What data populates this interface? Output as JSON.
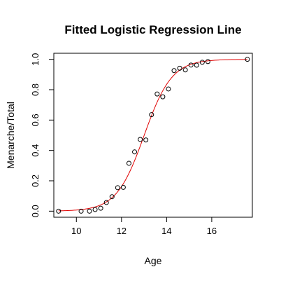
{
  "chart_data": {
    "type": "scatter",
    "title": "Fitted Logistic Regression Line",
    "xlabel": "Age",
    "ylabel": "Menarche/Total",
    "xlim": [
      9.0,
      17.8
    ],
    "ylim": [
      -0.04,
      1.04
    ],
    "x_ticks": [
      10,
      12,
      14,
      16
    ],
    "y_ticks": [
      0.0,
      0.2,
      0.4,
      0.6,
      0.8,
      1.0
    ],
    "x_tick_labels": [
      "10",
      "12",
      "14",
      "16"
    ],
    "y_tick_labels": [
      "0.0",
      "0.2",
      "0.4",
      "0.6",
      "0.8",
      "1.0"
    ],
    "grid": false,
    "series": [
      {
        "kind": "points",
        "marker": "open-circle",
        "color": "#000000",
        "points": [
          {
            "x": 9.21,
            "y": 0.0
          },
          {
            "x": 10.21,
            "y": 0.0
          },
          {
            "x": 10.58,
            "y": 0.0
          },
          {
            "x": 10.83,
            "y": 0.0108
          },
          {
            "x": 11.08,
            "y": 0.0193
          },
          {
            "x": 11.33,
            "y": 0.0571
          },
          {
            "x": 11.58,
            "y": 0.0952
          },
          {
            "x": 11.83,
            "y": 0.1547
          },
          {
            "x": 12.08,
            "y": 0.1566
          },
          {
            "x": 12.33,
            "y": 0.3151
          },
          {
            "x": 12.58,
            "y": 0.3901
          },
          {
            "x": 12.83,
            "y": 0.4725
          },
          {
            "x": 13.08,
            "y": 0.4688
          },
          {
            "x": 13.33,
            "y": 0.6354
          },
          {
            "x": 13.58,
            "y": 0.7719
          },
          {
            "x": 13.83,
            "y": 0.7534
          },
          {
            "x": 14.08,
            "y": 0.8049
          },
          {
            "x": 14.33,
            "y": 0.9259
          },
          {
            "x": 14.58,
            "y": 0.9412
          },
          {
            "x": 14.83,
            "y": 0.9302
          },
          {
            "x": 15.08,
            "y": 0.9623
          },
          {
            "x": 15.33,
            "y": 0.9615
          },
          {
            "x": 15.58,
            "y": 0.9804
          },
          {
            "x": 15.83,
            "y": 0.985
          },
          {
            "x": 17.58,
            "y": 1.0
          }
        ]
      },
      {
        "kind": "line",
        "color": "#e00000",
        "fit": "logistic",
        "intercept": -21.226,
        "slope": 1.632,
        "x_range": [
          9.21,
          17.58
        ]
      }
    ]
  }
}
